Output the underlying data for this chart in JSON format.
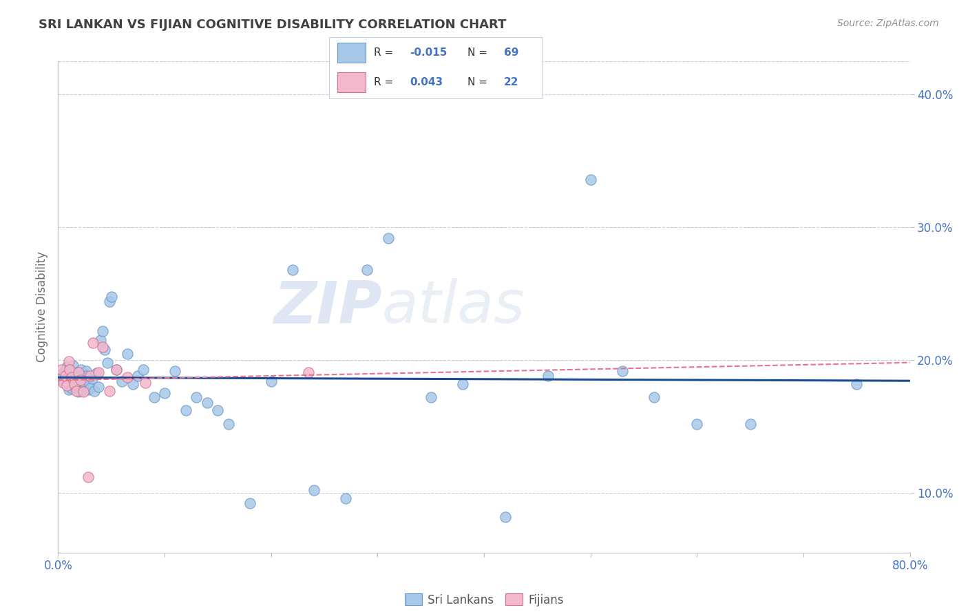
{
  "title": "SRI LANKAN VS FIJIAN COGNITIVE DISABILITY CORRELATION CHART",
  "source": "Source: ZipAtlas.com",
  "ylabel": "Cognitive Disability",
  "xlim": [
    0.0,
    0.8
  ],
  "ylim": [
    0.055,
    0.425
  ],
  "xticks": [
    0.0,
    0.1,
    0.2,
    0.3,
    0.4,
    0.5,
    0.6,
    0.7,
    0.8
  ],
  "xticklabels": [
    "0.0%",
    "",
    "",
    "",
    "",
    "",
    "",
    "",
    "80.0%"
  ],
  "yticks": [
    0.1,
    0.2,
    0.3,
    0.4
  ],
  "yticklabels": [
    "10.0%",
    "20.0%",
    "30.0%",
    "40.0%"
  ],
  "sri_lankan_color": "#a8c8e8",
  "sri_lankan_edge": "#6898c8",
  "fijian_color": "#f4b8cc",
  "fijian_edge": "#d07090",
  "sri_lankan_R": -0.015,
  "sri_lankan_N": 69,
  "fijian_R": 0.043,
  "fijian_N": 22,
  "trend_color_sri": "#1a4a90",
  "trend_color_fijian": "#e87090",
  "watermark_zip": "ZIP",
  "watermark_atlas": "atlas",
  "background_color": "#ffffff",
  "grid_color": "#c0cce0",
  "title_color": "#404040",
  "axis_label_color": "#4472c4",
  "legend_r_color": "#4472c4",
  "legend_n_color": "#4472c4",
  "sri_lankans_x": [
    0.004,
    0.005,
    0.006,
    0.007,
    0.008,
    0.009,
    0.01,
    0.01,
    0.011,
    0.012,
    0.013,
    0.014,
    0.015,
    0.016,
    0.017,
    0.018,
    0.019,
    0.02,
    0.021,
    0.022,
    0.023,
    0.024,
    0.025,
    0.026,
    0.027,
    0.028,
    0.029,
    0.03,
    0.032,
    0.034,
    0.036,
    0.038,
    0.04,
    0.042,
    0.044,
    0.046,
    0.048,
    0.05,
    0.055,
    0.06,
    0.065,
    0.07,
    0.075,
    0.08,
    0.09,
    0.1,
    0.11,
    0.12,
    0.13,
    0.14,
    0.15,
    0.16,
    0.18,
    0.2,
    0.22,
    0.24,
    0.27,
    0.29,
    0.31,
    0.35,
    0.38,
    0.42,
    0.46,
    0.5,
    0.53,
    0.56,
    0.6,
    0.65,
    0.75
  ],
  "sri_lankans_y": [
    0.19,
    0.185,
    0.192,
    0.188,
    0.195,
    0.182,
    0.178,
    0.193,
    0.187,
    0.183,
    0.179,
    0.196,
    0.184,
    0.18,
    0.191,
    0.187,
    0.176,
    0.183,
    0.179,
    0.193,
    0.188,
    0.178,
    0.183,
    0.192,
    0.188,
    0.178,
    0.183,
    0.179,
    0.186,
    0.177,
    0.19,
    0.18,
    0.215,
    0.222,
    0.208,
    0.198,
    0.244,
    0.248,
    0.193,
    0.184,
    0.205,
    0.182,
    0.188,
    0.193,
    0.172,
    0.175,
    0.192,
    0.162,
    0.172,
    0.168,
    0.162,
    0.152,
    0.092,
    0.184,
    0.268,
    0.102,
    0.096,
    0.268,
    0.292,
    0.172,
    0.182,
    0.082,
    0.188,
    0.336,
    0.192,
    0.172,
    0.152,
    0.152,
    0.182
  ],
  "fijians_x": [
    0.003,
    0.005,
    0.007,
    0.008,
    0.01,
    0.011,
    0.013,
    0.015,
    0.017,
    0.019,
    0.021,
    0.024,
    0.028,
    0.03,
    0.033,
    0.038,
    0.042,
    0.048,
    0.055,
    0.065,
    0.082,
    0.235
  ],
  "fijians_y": [
    0.193,
    0.183,
    0.188,
    0.181,
    0.199,
    0.193,
    0.187,
    0.182,
    0.177,
    0.191,
    0.185,
    0.176,
    0.112,
    0.188,
    0.213,
    0.191,
    0.21,
    0.177,
    0.193,
    0.187,
    0.183,
    0.191
  ]
}
